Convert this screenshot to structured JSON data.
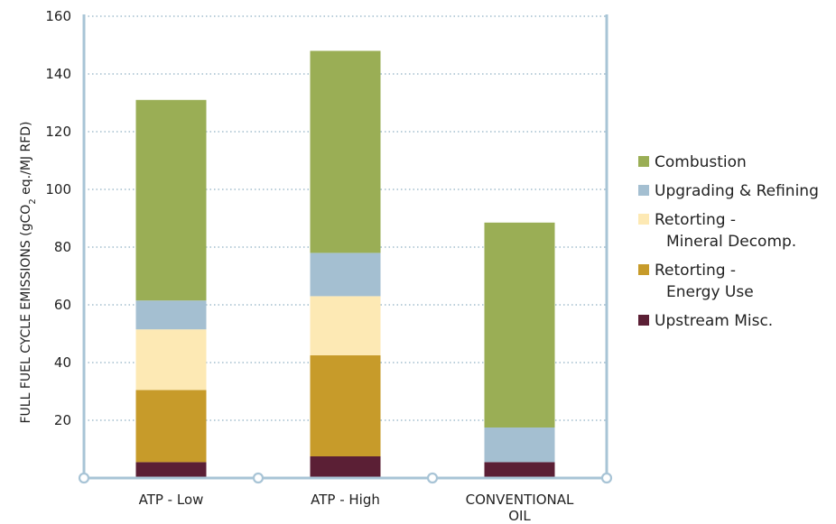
{
  "chart_data": {
    "type": "bar",
    "stacked": true,
    "categories": [
      "ATP - Low",
      "ATP - High",
      "CONVENTIONAL OIL"
    ],
    "category_lines": [
      [
        "ATP - Low"
      ],
      [
        "ATP - High"
      ],
      [
        "CONVENTIONAL",
        "OIL"
      ]
    ],
    "ylabel_parts": {
      "before": "FULL FUEL CYCLE EMISSIONS (gCO",
      "subscript": "2",
      "after": " eq./MJ RFD)"
    },
    "ylim": [
      0,
      160
    ],
    "yticks": [
      20,
      40,
      60,
      80,
      100,
      120,
      140,
      160
    ],
    "grid": true,
    "legend_position": "right",
    "series": [
      {
        "name": "Upstream Misc.",
        "lines": [
          "Upstream Misc."
        ],
        "color": "#5b1f35",
        "values": [
          5.5,
          7.5,
          5.5
        ]
      },
      {
        "name": "Retorting - Energy Use",
        "lines": [
          "Retorting -",
          "Energy Use"
        ],
        "color": "#c79b2a",
        "values": [
          25,
          35,
          0
        ]
      },
      {
        "name": "Retorting - Mineral Decomp.",
        "lines": [
          "Retorting -",
          "Mineral Decomp."
        ],
        "color": "#fde9b4",
        "values": [
          21,
          20.5,
          0
        ]
      },
      {
        "name": "Upgrading & Refining",
        "lines": [
          "Upgrading & Refining"
        ],
        "color": "#a4bfd1",
        "values": [
          10,
          15,
          12
        ]
      },
      {
        "name": "Combustion",
        "lines": [
          "Combustion"
        ],
        "color": "#9aae55",
        "values": [
          69.5,
          70,
          71
        ]
      }
    ],
    "frame_color": "#a8c4d6",
    "grid_color": "#8fb0c4"
  }
}
